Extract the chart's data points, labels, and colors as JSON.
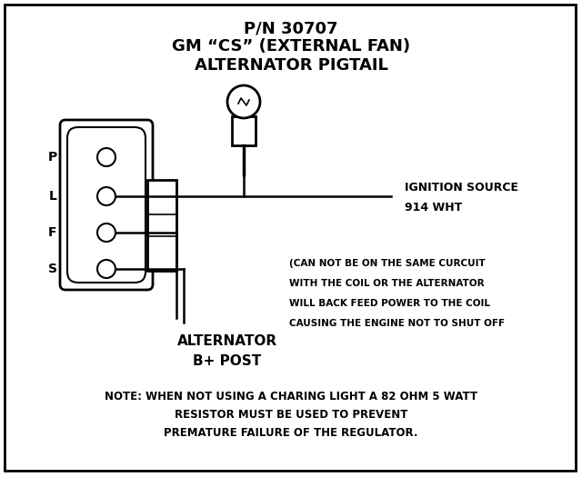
{
  "title_line1": "P/N 30707",
  "title_line2": "GM “CS” (EXTERNAL FAN)",
  "title_line3": "ALTERNATOR PIGTAIL",
  "bg_color": "#ffffff",
  "border_color": "#000000",
  "text_color": "#000000",
  "ignition_label1": "IGNITION SOURCE",
  "ignition_label2": "914 WHT",
  "alternator_label1": "ALTERNATOR",
  "alternator_label2": "B+ POST",
  "warning_line1": "(CAN NOT BE ON THE SAME CURCUIT",
  "warning_line2": "WITH THE COIL OR THE ALTERNATOR",
  "warning_line3": "WILL BACK FEED POWER TO THE COIL",
  "warning_line4": "CAUSING THE ENGINE NOT TO SHUT OFF",
  "note_line1": "NOTE: WHEN NOT USING A CHARING LIGHT A 82 OHM 5 WATT",
  "note_line2": "RESISTOR MUST BE USED TO PREVENT",
  "note_line3": "PREMATURE FAILURE OF THE REGULATOR.",
  "plfs_labels": [
    "P",
    "L",
    "F",
    "S"
  ]
}
